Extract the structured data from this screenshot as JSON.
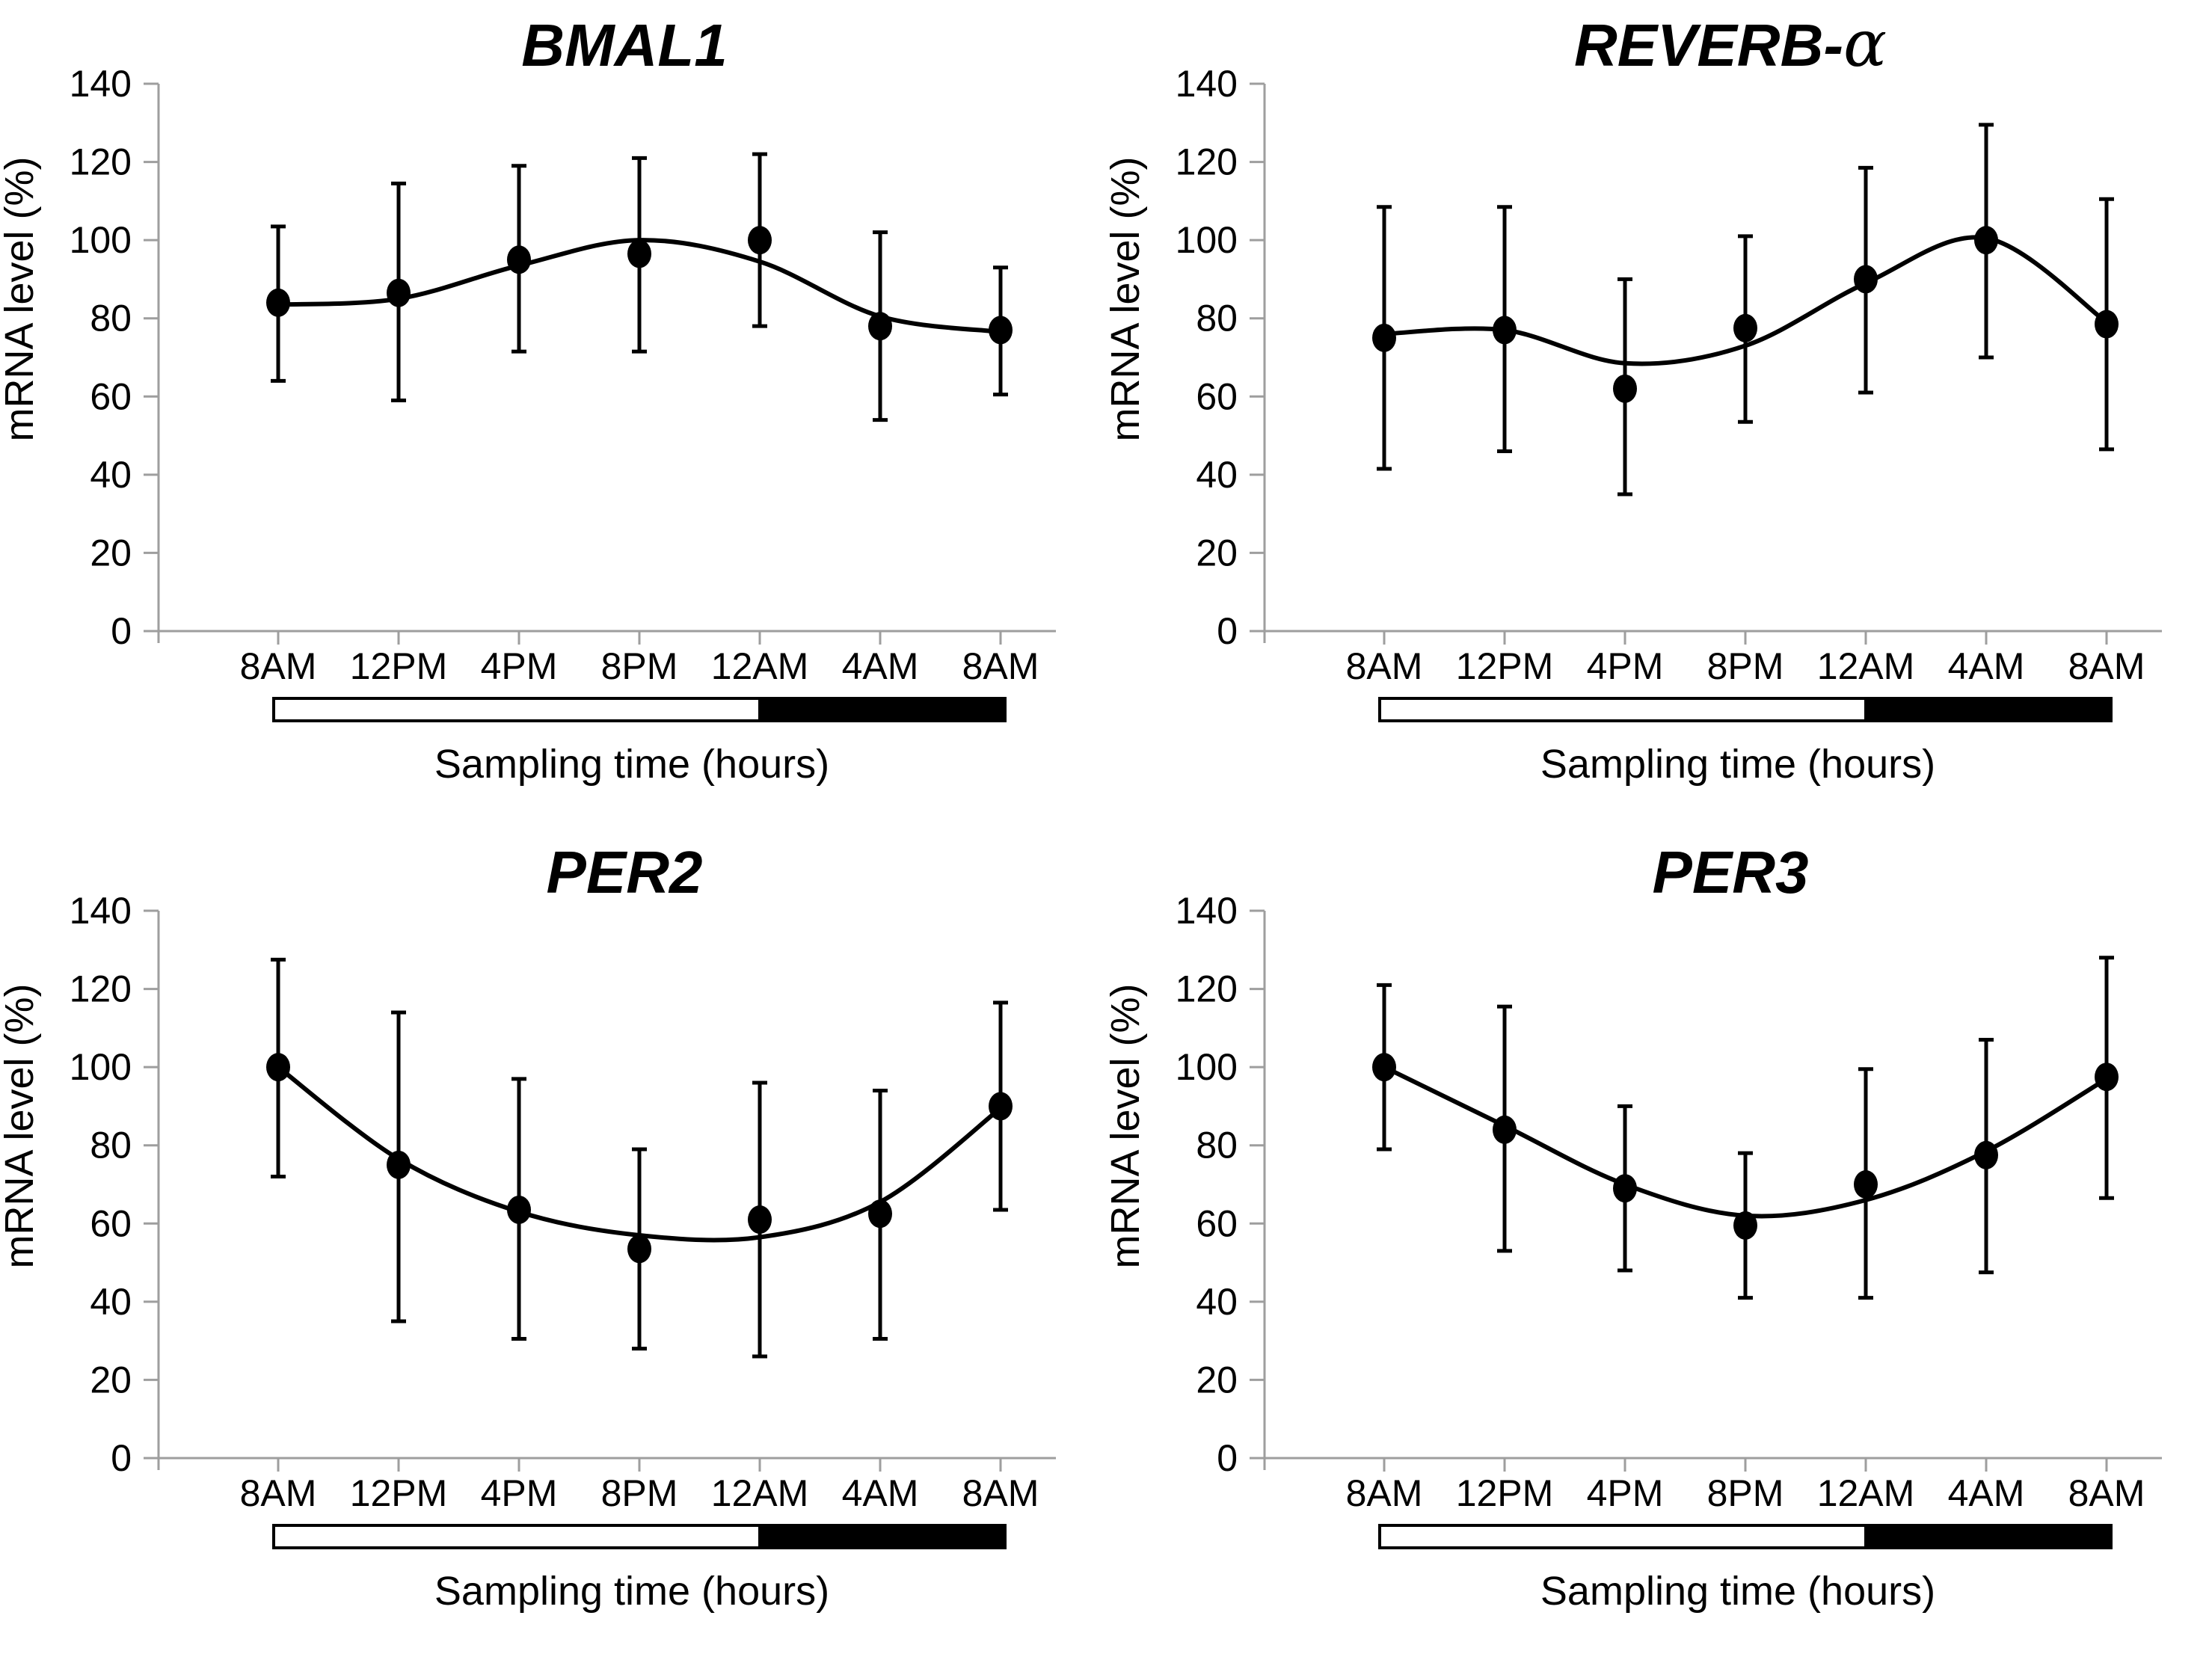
{
  "figure": {
    "background": "#ffffff",
    "text_color": "#000000",
    "axis_color": "#9e9e9e",
    "marker_color": "#000000",
    "day_color": "#ffffff",
    "night_color": "#000000"
  },
  "chart_data": [
    {
      "type": "scatter",
      "title": "BMAL1",
      "title_main": "BMAL1",
      "title_greek": "",
      "xlabel": "Sampling time (hours)",
      "ylabel": "mRNA level (%)",
      "ylim": [
        0,
        140
      ],
      "yticks": [
        0,
        20,
        40,
        60,
        80,
        100,
        120,
        140
      ],
      "grid": false,
      "legend": null,
      "categories": [
        "8AM",
        "12PM",
        "4PM",
        "8PM",
        "12AM",
        "4AM",
        "8AM"
      ],
      "values": [
        84,
        86.5,
        95,
        96.5,
        100,
        78,
        77
      ],
      "error_low": [
        64,
        59,
        71.5,
        71.5,
        78,
        54,
        60.5
      ],
      "error_high": [
        103.5,
        114.5,
        119,
        121,
        122,
        102,
        93
      ],
      "fit_curve": [
        83.5,
        85,
        93.5,
        100,
        94.5,
        80.5,
        76.5
      ],
      "light_dark_bar": {
        "light_span": [
          "8AM",
          "12AM"
        ],
        "dark_span": [
          "12AM",
          "8AM"
        ],
        "transition_index": 4
      }
    },
    {
      "type": "scatter",
      "title": "REVERB-α",
      "title_main": "REVERB-",
      "title_greek": "α",
      "xlabel": "Sampling time (hours)",
      "ylabel": "mRNA level (%)",
      "ylim": [
        0,
        140
      ],
      "yticks": [
        0,
        20,
        40,
        60,
        80,
        100,
        120,
        140
      ],
      "grid": false,
      "legend": null,
      "categories": [
        "8AM",
        "12PM",
        "4PM",
        "8PM",
        "12AM",
        "4AM",
        "8AM"
      ],
      "values": [
        75,
        77,
        62,
        77.5,
        90,
        100,
        78.5
      ],
      "error_low": [
        41.5,
        46,
        35,
        53.5,
        61,
        70,
        46.5
      ],
      "error_high": [
        108.5,
        108.5,
        90,
        101,
        118.5,
        129.5,
        110.5
      ],
      "fit_curve": [
        76,
        77,
        68.5,
        73,
        89,
        100.5,
        79
      ],
      "light_dark_bar": {
        "light_span": [
          "8AM",
          "12AM"
        ],
        "dark_span": [
          "12AM",
          "8AM"
        ],
        "transition_index": 4
      }
    },
    {
      "type": "scatter",
      "title": "PER2",
      "title_main": "PER2",
      "title_greek": "",
      "xlabel": "Sampling time (hours)",
      "ylabel": "mRNA level (%)",
      "ylim": [
        0,
        140
      ],
      "yticks": [
        0,
        20,
        40,
        60,
        80,
        100,
        120,
        140
      ],
      "grid": false,
      "legend": null,
      "categories": [
        "8AM",
        "12PM",
        "4PM",
        "8PM",
        "12AM",
        "4AM",
        "8AM"
      ],
      "values": [
        100,
        75,
        63.5,
        53.5,
        61,
        62.5,
        90
      ],
      "error_low": [
        72,
        35,
        30.5,
        28,
        26,
        30.5,
        63.5
      ],
      "error_high": [
        127.5,
        114,
        97,
        79,
        96,
        94,
        116.5
      ],
      "fit_curve": [
        100,
        76.5,
        63,
        57,
        56.5,
        65.5,
        89.5
      ],
      "light_dark_bar": {
        "light_span": [
          "8AM",
          "12AM"
        ],
        "dark_span": [
          "12AM",
          "8AM"
        ],
        "transition_index": 4
      }
    },
    {
      "type": "scatter",
      "title": "PER3",
      "title_main": "PER3",
      "title_greek": "",
      "xlabel": "Sampling time (hours)",
      "ylabel": "mRNA level (%)",
      "ylim": [
        0,
        140
      ],
      "yticks": [
        0,
        20,
        40,
        60,
        80,
        100,
        120,
        140
      ],
      "grid": false,
      "legend": null,
      "categories": [
        "8AM",
        "12PM",
        "4PM",
        "8PM",
        "12AM",
        "4AM",
        "8AM"
      ],
      "values": [
        100,
        84,
        69,
        59.5,
        70,
        77.5,
        97.5
      ],
      "error_low": [
        79,
        53,
        48,
        41,
        41,
        47.5,
        66.5
      ],
      "error_high": [
        121,
        115.5,
        90,
        78,
        99.5,
        107,
        128
      ],
      "fit_curve": [
        100,
        85,
        70,
        62,
        66,
        78.5,
        97
      ],
      "light_dark_bar": {
        "light_span": [
          "8AM",
          "12AM"
        ],
        "dark_span": [
          "12AM",
          "8AM"
        ],
        "transition_index": 4
      }
    }
  ]
}
